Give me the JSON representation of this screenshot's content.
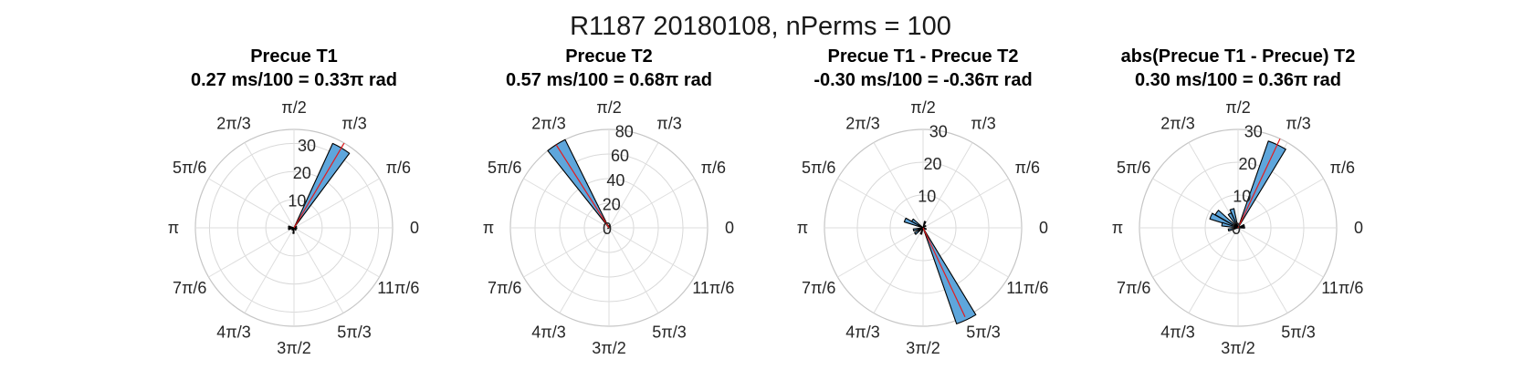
{
  "figure": {
    "title": "R1187 20180108, nPerms = 100"
  },
  "theta_tick_labels": [
    "0",
    "π/6",
    "π/3",
    "π/2",
    "2π/3",
    "5π/6",
    "π",
    "7π/6",
    "4π/3",
    "3π/2",
    "5π/3",
    "11π/6"
  ],
  "colors": {
    "bar_fill": "#5ea6dc",
    "bar_edge": "#000000",
    "mean_line": "#e41a1c",
    "grid": "#d9d9d9"
  },
  "chart_data": [
    {
      "type": "polar-histogram",
      "title": "Precue T1",
      "subtitle": "0.27 ms/100 = 0.33π rad",
      "rlim": [
        0,
        35
      ],
      "r_ticks": [
        10,
        20,
        30
      ],
      "r_tick_labels": [
        "10",
        "20",
        "30"
      ],
      "mean_angle_pi": 0.33,
      "bars": [
        {
          "angle_pi": 0.33,
          "value": 33
        },
        {
          "angle_pi": 0.93,
          "value": 2
        },
        {
          "angle_pi": 1.07,
          "value": 2
        },
        {
          "angle_pi": 1.27,
          "value": 1
        },
        {
          "angle_pi": 1.47,
          "value": 2
        },
        {
          "angle_pi": 1.73,
          "value": 1
        },
        {
          "angle_pi": 1.93,
          "value": 1
        },
        {
          "angle_pi": 0.13,
          "value": 1
        }
      ]
    },
    {
      "type": "polar-histogram",
      "title": "Precue T2",
      "subtitle": "0.57 ms/100 = 0.68π rad",
      "rlim": [
        0,
        80
      ],
      "r_ticks": [
        0,
        20,
        40,
        60,
        80
      ],
      "r_tick_labels": [
        "0",
        "20",
        "40",
        "60",
        "80"
      ],
      "mean_angle_pi": 0.68,
      "bars": [
        {
          "angle_pi": 0.68,
          "value": 80
        },
        {
          "angle_pi": 0.47,
          "value": 2
        },
        {
          "angle_pi": 1.13,
          "value": 1
        }
      ]
    },
    {
      "type": "polar-histogram",
      "title": "Precue T1 - Precue T2",
      "subtitle": "-0.30 ms/100 = -0.36π rad",
      "rlim": [
        0,
        30
      ],
      "r_ticks": [
        10,
        20,
        30
      ],
      "r_tick_labels": [
        "10",
        "20",
        "30"
      ],
      "mean_angle_pi": -0.36,
      "bars": [
        {
          "angle_pi": 1.64,
          "value": 31
        },
        {
          "angle_pi": 0.87,
          "value": 6
        },
        {
          "angle_pi": 0.8,
          "value": 4
        },
        {
          "angle_pi": 1.07,
          "value": 3
        },
        {
          "angle_pi": 1.2,
          "value": 3
        },
        {
          "angle_pi": 0.4,
          "value": 2
        },
        {
          "angle_pi": 0.2,
          "value": 1
        },
        {
          "angle_pi": 1.4,
          "value": 2
        },
        {
          "angle_pi": 1.87,
          "value": 1
        }
      ]
    },
    {
      "type": "polar-histogram",
      "title": "abs(Precue T1 - Precue) T2",
      "subtitle": "0.30 ms/100 = 0.36π rad",
      "rlim": [
        0,
        30
      ],
      "r_ticks": [
        0,
        10,
        20,
        30
      ],
      "r_tick_labels": [
        "0",
        "10",
        "20",
        "30"
      ],
      "mean_angle_pi": 0.36,
      "bars": [
        {
          "angle_pi": 0.36,
          "value": 28
        },
        {
          "angle_pi": 0.87,
          "value": 9
        },
        {
          "angle_pi": 0.8,
          "value": 8
        },
        {
          "angle_pi": 0.93,
          "value": 5
        },
        {
          "angle_pi": 0.6,
          "value": 6
        },
        {
          "angle_pi": 0.67,
          "value": 5
        },
        {
          "angle_pi": 1.07,
          "value": 3
        },
        {
          "angle_pi": 0.13,
          "value": 2
        },
        {
          "angle_pi": 0.02,
          "value": 2
        }
      ]
    }
  ]
}
